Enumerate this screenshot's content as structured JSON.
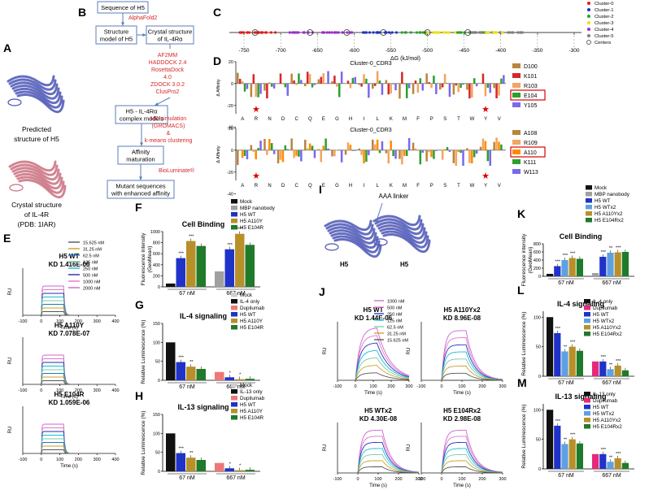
{
  "panels": {
    "A": "A",
    "B": "B",
    "C": "C",
    "D": "D",
    "E": "E",
    "F": "F",
    "G": "G",
    "H": "H",
    "I": "I",
    "J": "J",
    "K": "K",
    "L": "L",
    "M": "M"
  },
  "panelA": {
    "predicted": [
      "Predicted",
      "structure of H5"
    ],
    "crystal": [
      "Crystal structure",
      "of IL-4R",
      "(PDB: 1IAR)"
    ]
  },
  "panelB": {
    "seq": "Sequence of H5",
    "alphafold": "AlphaFold2",
    "model": [
      "Structure",
      "model of H5"
    ],
    "crystal": [
      "Crystal structure",
      "of IL-4Rα"
    ],
    "tools": [
      "AF2MM",
      "HADDOCK 2.4",
      "RosettaDock",
      "4.0",
      "ZDOCK 3.0.2",
      "ClusPro2"
    ],
    "complex": [
      "H5 - IL-4Rα",
      "complex models"
    ],
    "md": [
      "MD simulation",
      "(GROMACS)",
      "&",
      "k-means clustering"
    ],
    "affinity": [
      "Affinity",
      "maturation"
    ],
    "biolum": "BioLuminate®",
    "mutant": [
      "Mutant sequences",
      "with enhanced affinity"
    ]
  },
  "panelC": {
    "xlabel": "ΔG (kJ/mol)",
    "ticks": [
      -750,
      -700,
      -650,
      -600,
      -550,
      -500,
      -450,
      -400,
      -350,
      -300
    ],
    "legend": [
      {
        "label": "Cluster-0",
        "color": "#e41a1c"
      },
      {
        "label": "Cluster-1",
        "color": "#1f33c8"
      },
      {
        "label": "Cluster-2",
        "color": "#2ca02c"
      },
      {
        "label": "Cluster-3",
        "color": "#f0e000"
      },
      {
        "label": "Cluster-4",
        "color": "#9b30c8"
      },
      {
        "label": "Cluster-5",
        "color": "#7f7f7f"
      },
      {
        "label": "Centers",
        "color": "none"
      }
    ]
  },
  "panelD": {
    "ylabel": "Δ Affinity",
    "top": {
      "title": "Cluster-0_CDR3",
      "yticks": [
        20,
        0,
        -20,
        -40
      ],
      "legend": [
        {
          "label": "D100",
          "color": "#b8863b"
        },
        {
          "label": "K101",
          "color": "#d62728"
        },
        {
          "label": "R103",
          "color": "#f4a460"
        },
        {
          "label": "E104",
          "color": "#2ca02c",
          "boxed": true
        },
        {
          "label": "Y105",
          "color": "#7b68ee"
        }
      ]
    },
    "bottom": {
      "title": "Cluster-0_CDR3",
      "yticks": [
        20,
        0,
        -20,
        -40
      ],
      "legend": [
        {
          "label": "A108",
          "color": "#b8863b"
        },
        {
          "label": "R109",
          "color": "#f4a460"
        },
        {
          "label": "A110",
          "color": "#ff8c00",
          "boxed": true
        },
        {
          "label": "K111",
          "color": "#2ca02c"
        },
        {
          "label": "W113",
          "color": "#7b68ee"
        }
      ]
    },
    "residues": [
      "A",
      "R",
      "N",
      "D",
      "C",
      "Q",
      "E",
      "G",
      "H",
      "I",
      "L",
      "K",
      "M",
      "F",
      "P",
      "S",
      "T",
      "W",
      "Y",
      "V"
    ]
  },
  "panelE": {
    "legend": [
      "15.625 nM",
      "31.25 nM",
      "62.5 nM",
      "125 nM",
      "250 nM",
      "500 nM",
      "1000 nM",
      "2000 nM"
    ],
    "colors": [
      "#555555",
      "#c9a227",
      "#1f77b4",
      "#7ec8a4",
      "#17becf",
      "#2a2aa8",
      "#e377c2",
      "#cc66cc"
    ],
    "sensorgrams": [
      {
        "name": "H5 WT",
        "kd": "KD 1.416E-06"
      },
      {
        "name": "H5 A110Y",
        "kd": "KD 7.078E-07"
      },
      {
        "name": "H5 E104R",
        "kd": "KD 1.059E-06"
      }
    ],
    "ylabel": "RU",
    "xlabel": "Time (s)",
    "xticks": [
      -100,
      0,
      100,
      200,
      300,
      400
    ],
    "yticks": [
      0,
      5,
      10,
      15,
      20,
      25,
      30
    ]
  },
  "panelF": {
    "title": "Cell Binding",
    "ylabel": [
      "Fluorescence intensity",
      "(GeoMean)"
    ],
    "yticks": [
      0,
      200,
      400,
      600,
      800,
      1000
    ],
    "legend": [
      {
        "label": "Mock",
        "color": "#111111"
      },
      {
        "label": "MBP nanobody",
        "color": "#a0a0a0"
      },
      {
        "label": "H5 WT",
        "color": "#1f33c8"
      },
      {
        "label": "H5 A110Y",
        "color": "#b8902a"
      },
      {
        "label": "H5 E104R",
        "color": "#1f7a2a"
      }
    ],
    "groups": [
      "67 nM",
      "667 nM"
    ],
    "controls": [
      60,
      280
    ],
    "values": [
      [
        520,
        830,
        740
      ],
      [
        680,
        960,
        760
      ]
    ],
    "stars": [
      [
        "",
        "***",
        "***"
      ],
      [
        "",
        "***",
        "***"
      ]
    ]
  },
  "panelG": {
    "title": "IL-4 signaling",
    "ylabel": "Relative Luminescence (%)",
    "yticks": [
      0,
      50,
      100,
      150
    ],
    "legend": [
      {
        "label": "Mock",
        "color": "#d0d0d0"
      },
      {
        "label": "IL-4 only",
        "color": "#111111"
      },
      {
        "label": "Dupilumab",
        "color": "#ee7777"
      },
      {
        "label": "H5 WT",
        "color": "#1f33c8"
      },
      {
        "label": "H5 A110Y",
        "color": "#b8902a"
      },
      {
        "label": "H5 E104R",
        "color": "#1f7a2a"
      }
    ],
    "groups": [
      "67 nM",
      "667 nM"
    ],
    "controls": [
      100,
      22
    ],
    "values": [
      [
        48,
        36,
        30
      ],
      [
        8,
        3,
        4
      ]
    ],
    "stars": [
      [
        "",
        "***",
        "**"
      ],
      [
        "",
        "*",
        "*"
      ]
    ]
  },
  "panelH": {
    "title": "IL-13 signaling",
    "ylabel": "Relative Luminescence (%)",
    "yticks": [
      0,
      50,
      100,
      150
    ],
    "legend": [
      {
        "label": "Mock",
        "color": "#d0d0d0"
      },
      {
        "label": "IL-13 only",
        "color": "#111111"
      },
      {
        "label": "Dupilumab",
        "color": "#ee7777"
      },
      {
        "label": "H5 WT",
        "color": "#1f33c8"
      },
      {
        "label": "H5 A110Y",
        "color": "#b8902a"
      },
      {
        "label": "H5 E104R",
        "color": "#1f7a2a"
      }
    ],
    "groups": [
      "67 nM",
      "667 nM"
    ],
    "controls": [
      100,
      22
    ],
    "values": [
      [
        48,
        36,
        30
      ],
      [
        8,
        3,
        4
      ]
    ],
    "stars": [
      [
        "",
        "***",
        "**"
      ],
      [
        "",
        "*",
        "*"
      ]
    ]
  },
  "panelI": {
    "linker": "AAA linker",
    "left": "H5",
    "right": "H5"
  },
  "panelJ": {
    "legend": [
      "1000 nM",
      "500 nM",
      "250 nM",
      "125 nM",
      "62.5 nM",
      "31.25 nM",
      "15.625 nM"
    ],
    "colors": [
      "#cc66cc",
      "#e377c2",
      "#1f33c8",
      "#17becf",
      "#7ec8a4",
      "#c9a227",
      "#555555"
    ],
    "sensorgrams": [
      {
        "name": "H5 WT",
        "kd": "KD 1.44E-06"
      },
      {
        "name": "H5 A110Yx2",
        "kd": "KD 8.96E-08"
      },
      {
        "name": "H5 WTx2",
        "kd": "KD 4.30E-08"
      },
      {
        "name": "H5 E104Rx2",
        "kd": "KD 2.98E-08"
      }
    ],
    "ylabel": "RU",
    "xlabel": "Time (s)",
    "xticks": [
      -100,
      0,
      100,
      200,
      300
    ]
  },
  "panelK": {
    "title": "Cell Binding",
    "ylabel": [
      "Fluorescence intensity",
      "(GeoMean)"
    ],
    "yticks": [
      0,
      200,
      400,
      600,
      800
    ],
    "legend": [
      {
        "label": "Mock",
        "color": "#111111"
      },
      {
        "label": "MBP nanobody",
        "color": "#a0a0a0"
      },
      {
        "label": "H5  WT",
        "color": "#1f33c8"
      },
      {
        "label": "H5 WTx2",
        "color": "#5fa0e0"
      },
      {
        "label": "H5 A110Yx2",
        "color": "#b8902a"
      },
      {
        "label": "H5 E104Rx2",
        "color": "#1f7a2a"
      }
    ],
    "groups": [
      "67 nM",
      "667 nM"
    ],
    "controls": [
      60,
      80
    ],
    "values": [
      [
        250,
        400,
        450,
        430
      ],
      [
        480,
        580,
        590,
        600
      ]
    ],
    "stars": [
      [
        "",
        "***",
        "***",
        "***"
      ],
      [
        "",
        "***",
        "**",
        "***"
      ]
    ]
  },
  "panelL": {
    "title": "IL-4 signaling",
    "ylabel": "Relative Luminescence (%)",
    "yticks": [
      0,
      50,
      100
    ],
    "legend": [
      {
        "label": "IL-4 only",
        "color": "#111111"
      },
      {
        "label": "Dupilumab",
        "color": "#e6287a"
      },
      {
        "label": "H5  WT",
        "color": "#1f33c8"
      },
      {
        "label": "H5 WTx2",
        "color": "#5fa0e0"
      },
      {
        "label": "H5  A110Yx2",
        "color": "#b8902a"
      },
      {
        "label": "H5 E104Rx2",
        "color": "#1f7a2a"
      }
    ],
    "groups": [
      "67 nM",
      "667 nM"
    ],
    "controls": [
      100,
      25
    ],
    "values": [
      [
        73,
        42,
        50,
        43
      ],
      [
        25,
        12,
        18,
        10
      ]
    ],
    "stars": [
      [
        "",
        "***",
        "**",
        "***"
      ],
      [
        "",
        "***",
        "**",
        "***"
      ]
    ]
  },
  "panelM": {
    "title": "IL-13 signaling",
    "ylabel": "Relative Luminescence (%)",
    "yticks": [
      0,
      50,
      100
    ],
    "legend": [
      {
        "label": "IL-13 only",
        "color": "#111111"
      },
      {
        "label": "Dupilumab",
        "color": "#e6287a"
      },
      {
        "label": "H5  WT",
        "color": "#1f33c8"
      },
      {
        "label": "H5 WTx2",
        "color": "#5fa0e0"
      },
      {
        "label": "H5  A110Yx2",
        "color": "#b8902a"
      },
      {
        "label": "H5 E104Rx2",
        "color": "#1f7a2a"
      }
    ],
    "groups": [
      "67 nM",
      "667 nM"
    ],
    "controls": [
      100,
      25
    ],
    "values": [
      [
        73,
        42,
        50,
        43
      ],
      [
        25,
        12,
        18,
        10
      ]
    ],
    "stars": [
      [
        "",
        "***",
        "**",
        "***"
      ],
      [
        "",
        "***",
        "**",
        "***"
      ]
    ]
  }
}
